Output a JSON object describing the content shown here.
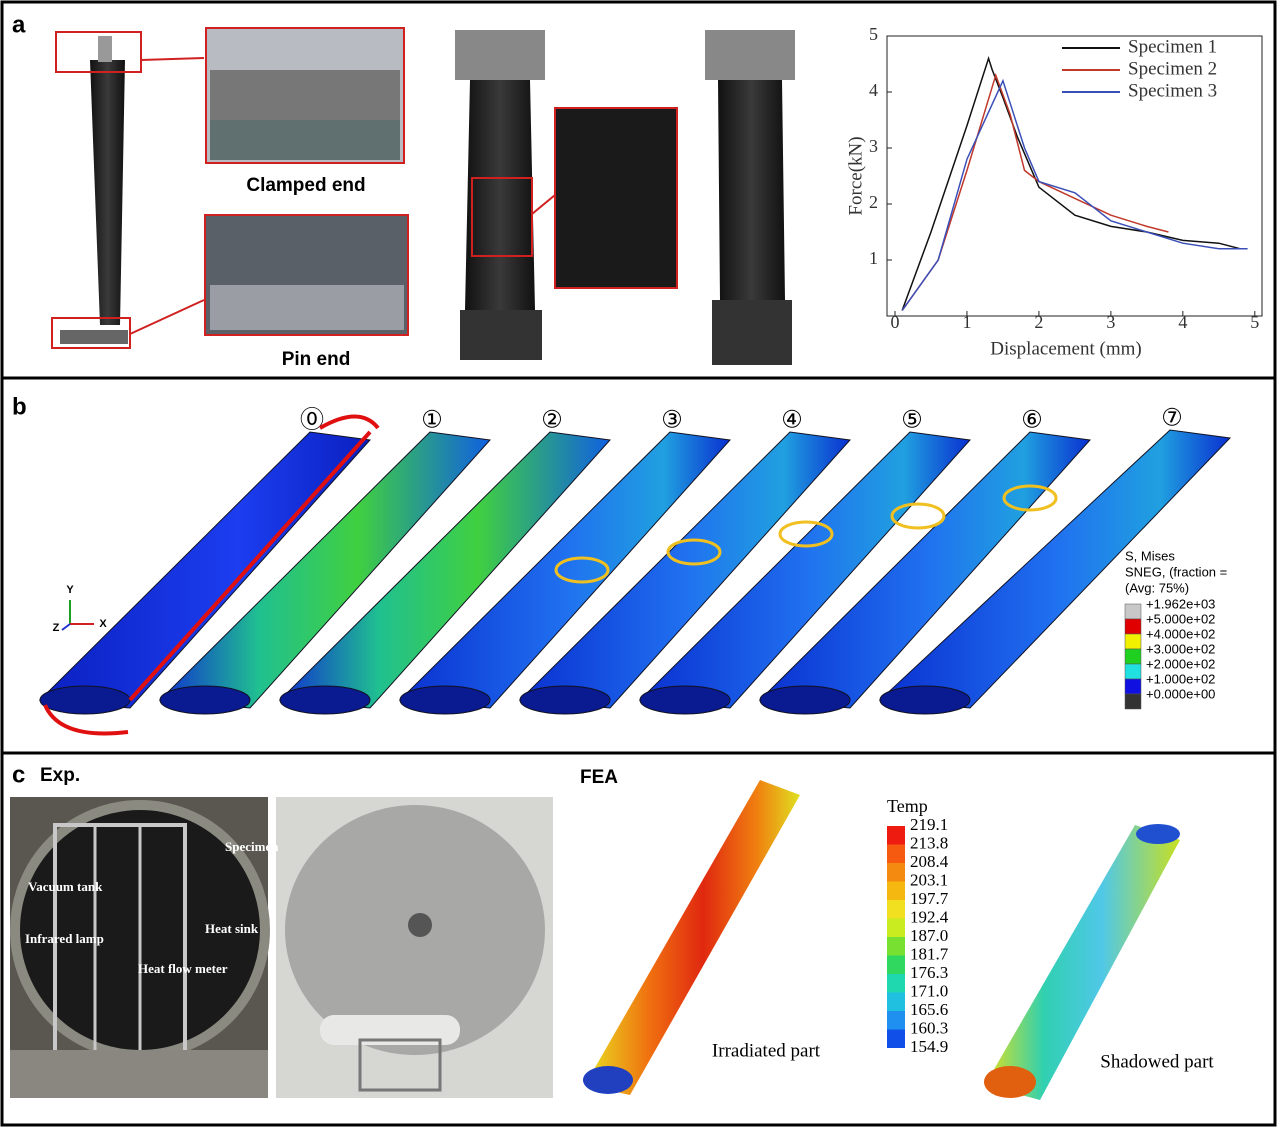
{
  "panel_a": {
    "label": "a",
    "photo_labels": [
      "Clamped end",
      "Pin end"
    ]
  },
  "chart_data": {
    "type": "line",
    "x_label": "Displacement (mm)",
    "y_label": "Force(kN)",
    "xlim": [
      0,
      5.1
    ],
    "ylim": [
      0,
      5
    ],
    "xticks": [
      0,
      1,
      2,
      3,
      4,
      5
    ],
    "yticks": [
      1,
      2,
      3,
      4,
      5
    ],
    "series": [
      {
        "name": "Specimen 1",
        "color": "#111111",
        "x": [
          0.1,
          0.5,
          1.0,
          1.3,
          1.35,
          1.5,
          1.7,
          2.0,
          2.5,
          3.0,
          3.5,
          4.0,
          4.5,
          4.8
        ],
        "values": [
          0.1,
          1.5,
          3.4,
          4.6,
          4.4,
          3.9,
          3.2,
          2.3,
          1.8,
          1.6,
          1.5,
          1.35,
          1.3,
          1.2
        ]
      },
      {
        "name": "Specimen 2",
        "color": "#c0392b",
        "x": [
          0.1,
          0.6,
          1.0,
          1.4,
          1.6,
          1.8,
          2.0,
          2.5,
          3.0,
          3.5,
          3.8
        ],
        "values": [
          0.1,
          1.0,
          2.6,
          4.3,
          3.6,
          2.6,
          2.4,
          2.1,
          1.8,
          1.6,
          1.5
        ]
      },
      {
        "name": "Specimen 3",
        "color": "#3b4fb8",
        "x": [
          0.1,
          0.6,
          1.0,
          1.5,
          1.6,
          1.8,
          2.0,
          2.5,
          3.0,
          3.5,
          4.0,
          4.5,
          4.9
        ],
        "values": [
          0.1,
          1.0,
          2.8,
          4.2,
          3.8,
          3.0,
          2.4,
          2.2,
          1.7,
          1.5,
          1.3,
          1.2,
          1.2
        ]
      }
    ]
  },
  "panel_b": {
    "label": "b",
    "stages": [
      "⓪",
      "①",
      "②",
      "③",
      "④",
      "⑤",
      "⑥",
      "⑦"
    ],
    "axes": [
      "Y",
      "Z",
      "X"
    ],
    "legend": {
      "title_lines": [
        "S, Mises",
        "SNEG, (fraction =",
        "(Avg: 75%)"
      ],
      "entries": [
        {
          "label": "+1.962e+03",
          "color": "#c8c8c8"
        },
        {
          "label": "+5.000e+02",
          "color": "#e00000"
        },
        {
          "label": "+4.000e+02",
          "color": "#f0f000"
        },
        {
          "label": "+3.000e+02",
          "color": "#20d020"
        },
        {
          "label": "+2.000e+02",
          "color": "#20e0e0"
        },
        {
          "label": "+1.000e+02",
          "color": "#1010e0"
        },
        {
          "label": "+0.000e+00",
          "color": "#333333"
        }
      ]
    }
  },
  "panel_c": {
    "label": "c",
    "exp_title": "Exp.",
    "fea_title": "FEA",
    "annotations": [
      "Specimen",
      "Vacuum tank",
      "Heat sink",
      "Infrared lamp",
      "Heat flow meter"
    ],
    "temp_legend": {
      "title": "Temp",
      "values": [
        "219.1",
        "213.8",
        "208.4",
        "203.1",
        "197.7",
        "192.4",
        "187.0",
        "181.7",
        "176.3",
        "171.0",
        "165.6",
        "160.3",
        "154.9"
      ],
      "colors": [
        "#ee1c10",
        "#f55a10",
        "#f58a10",
        "#f5b810",
        "#f0e020",
        "#c8ec20",
        "#78e030",
        "#30d860",
        "#20d8b0",
        "#20c0e0",
        "#2090f0",
        "#1050e8"
      ]
    },
    "captions": [
      "Irradiated part",
      "Shadowed part"
    ]
  }
}
